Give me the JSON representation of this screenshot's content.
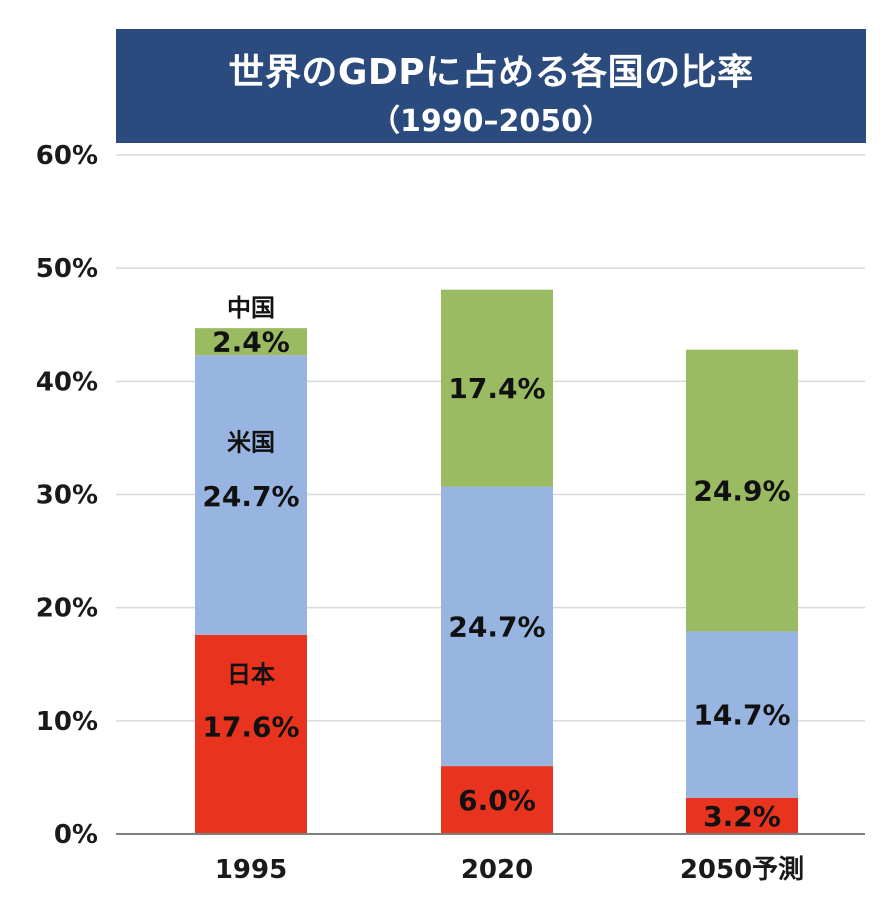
{
  "chart_data": {
    "type": "bar",
    "stacked": true,
    "title": "世界のGDPに占める各国の比率",
    "subtitle": "（1990–2050）",
    "xlabel": "",
    "ylabel": "",
    "categories": [
      "1995",
      "2020",
      "2050予測"
    ],
    "series": [
      {
        "name": "日本",
        "values": [
          17.6,
          6.0,
          3.2
        ],
        "labels": [
          "17.6%",
          "6.0%",
          "3.2%"
        ],
        "color": "#e8331f"
      },
      {
        "name": "米国",
        "values": [
          24.7,
          24.7,
          14.7
        ],
        "labels": [
          "24.7%",
          "24.7%",
          "14.7%"
        ],
        "color": "#98b4e0"
      },
      {
        "name": "中国",
        "values": [
          2.4,
          17.4,
          24.9
        ],
        "labels": [
          "2.4%",
          "17.4%",
          "24.9%"
        ],
        "color": "#9bbb63"
      }
    ],
    "ylim": [
      0,
      60
    ],
    "yticks": [
      0,
      10,
      20,
      30,
      40,
      50,
      60
    ],
    "ytick_labels": [
      "0%",
      "10%",
      "20%",
      "30%",
      "40%",
      "50%",
      "60%"
    ],
    "grid": true,
    "legend": "series names printed inside the 1995 bar"
  },
  "colors": {
    "banner_background": "#2b4a7e",
    "gridline": "#d9d9d9",
    "baseline": "#7f7f7f"
  }
}
